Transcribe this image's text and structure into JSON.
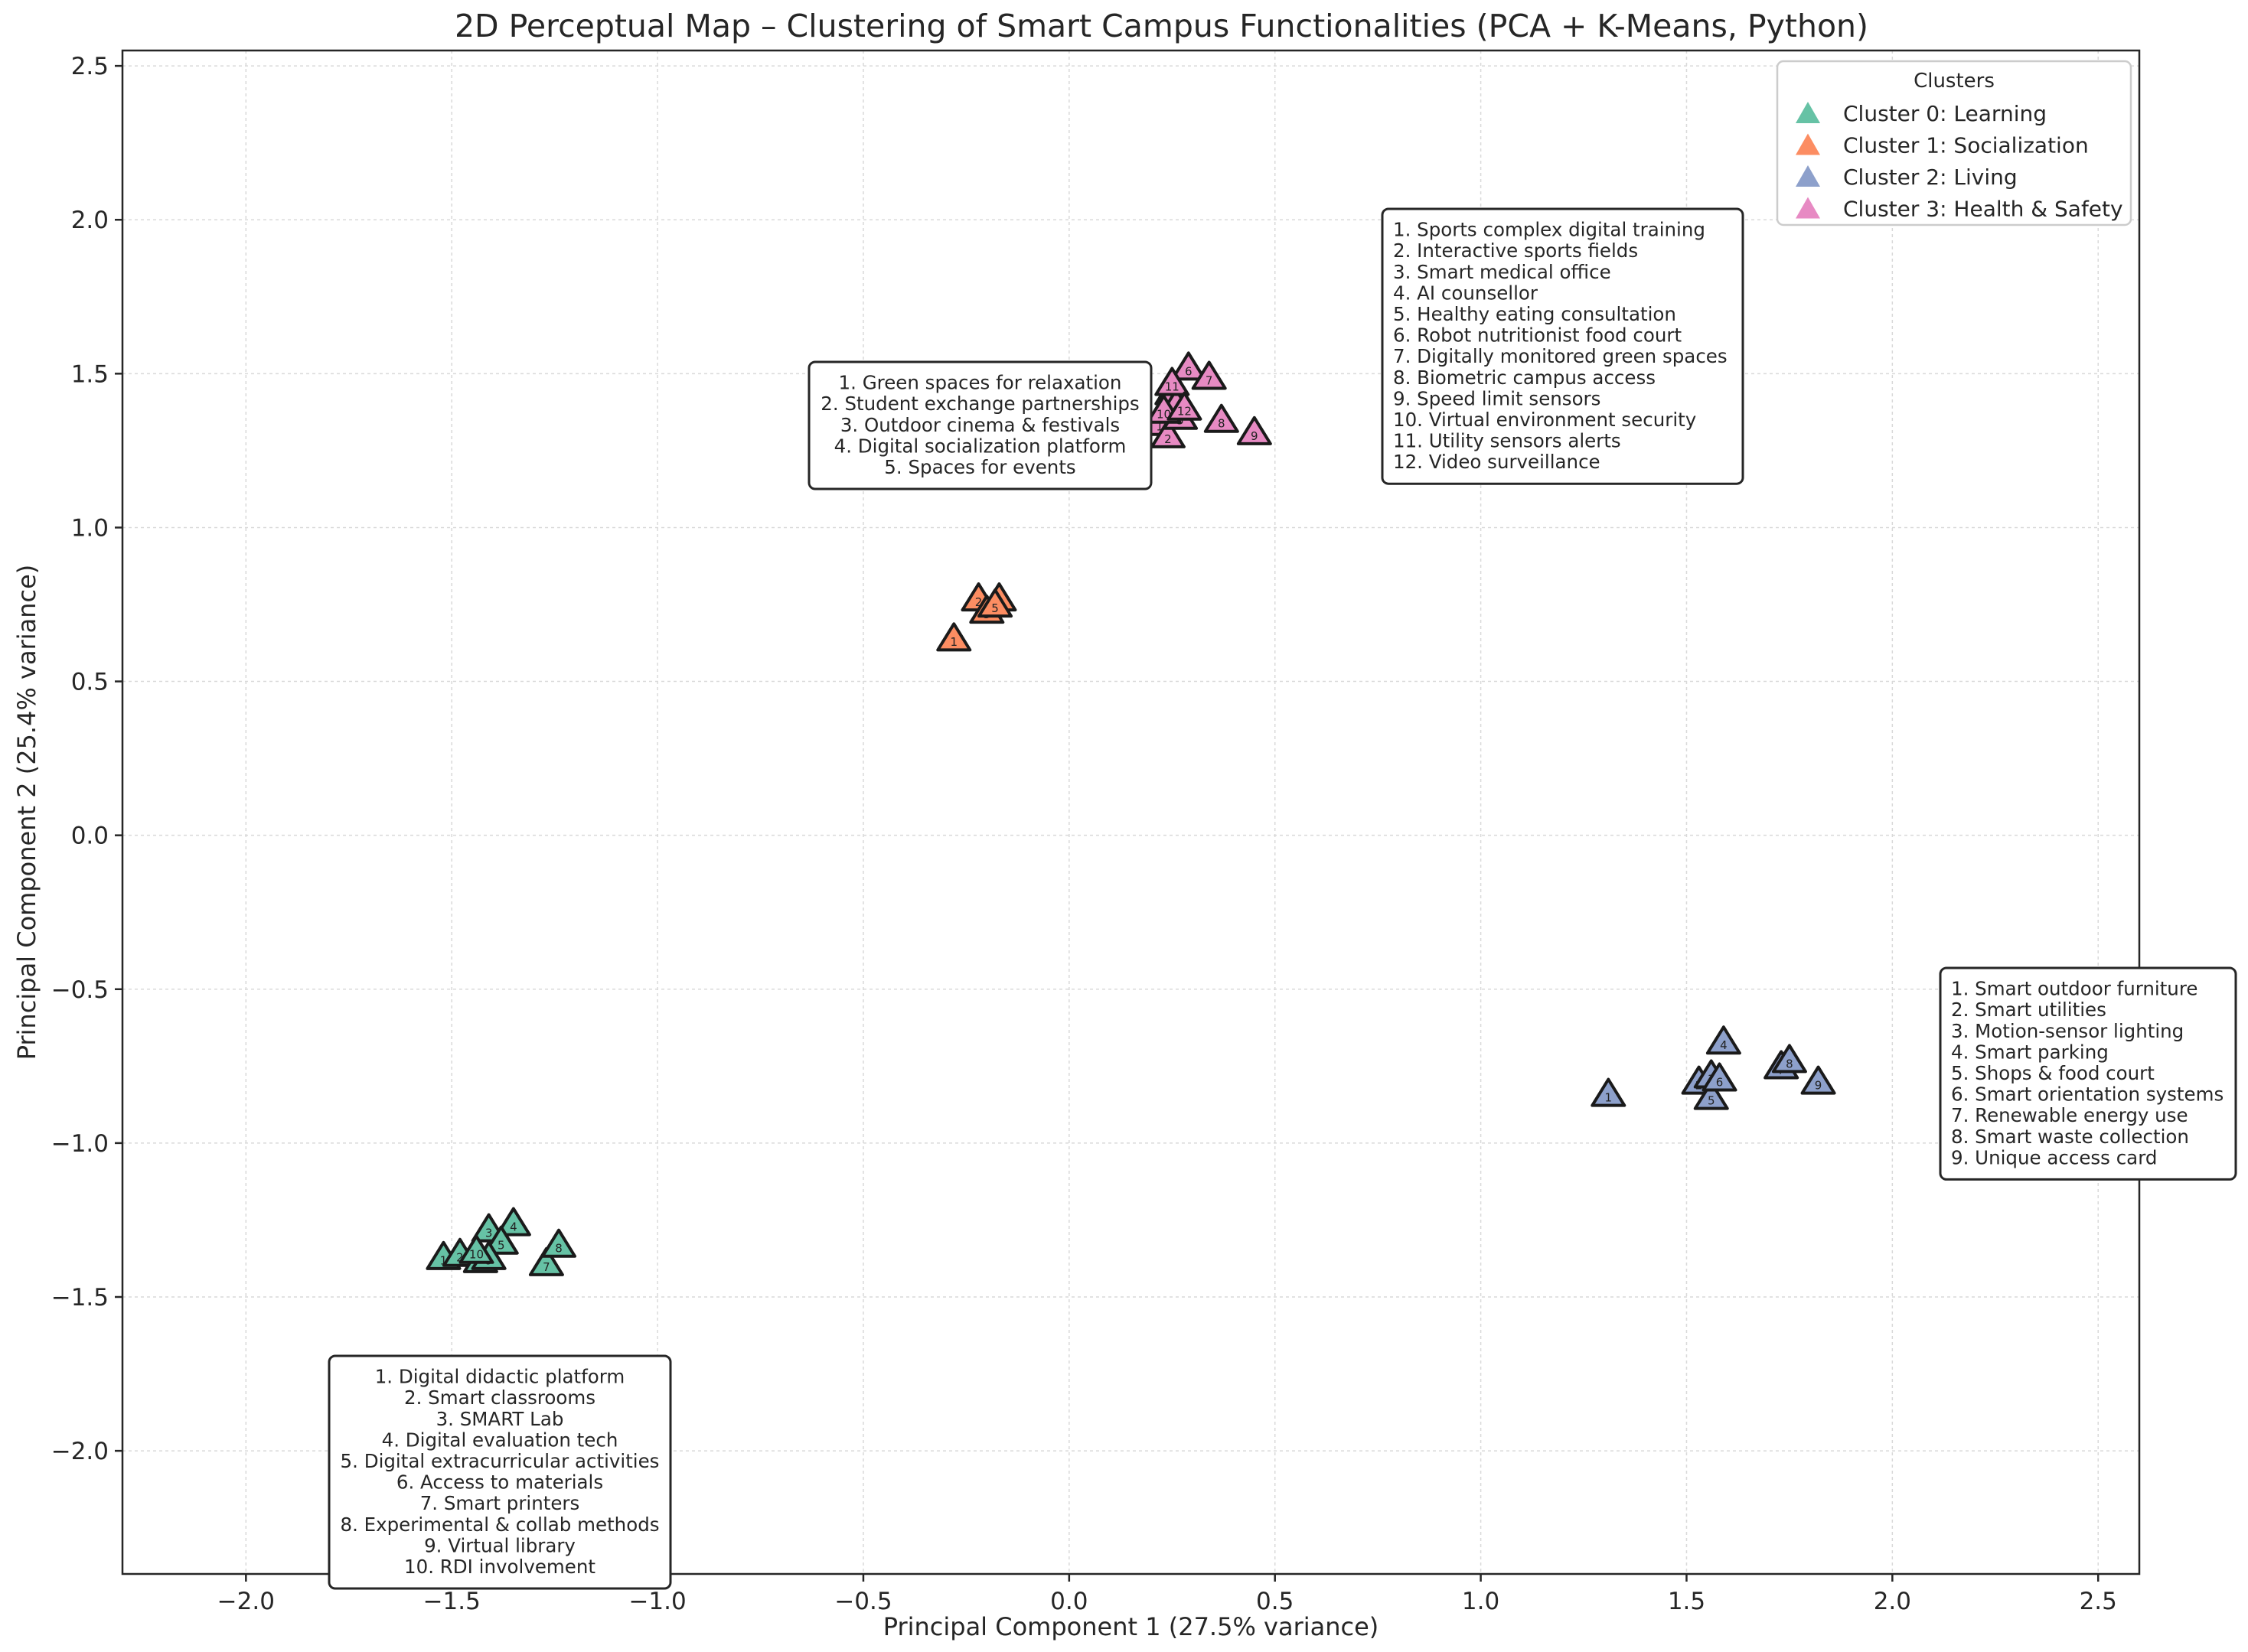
{
  "chart_data": {
    "type": "scatter",
    "title": "2D Perceptual Map – Clustering of Smart Campus Functionalities (PCA + K-Means, Python)",
    "xlabel": "Principal Component 1 (27.5% variance)",
    "ylabel": "Principal Component 2 (25.4% variance)",
    "xlim": [
      -2.3,
      2.6
    ],
    "ylim": [
      -2.4,
      2.55
    ],
    "xticks": [
      -2.0,
      -1.5,
      -1.0,
      -0.5,
      0.0,
      0.5,
      1.0,
      1.5,
      2.0,
      2.5
    ],
    "xtick_labels": [
      "−2.0",
      "−1.5",
      "−1.0",
      "−0.5",
      "0.0",
      "0.5",
      "1.0",
      "1.5",
      "2.0",
      "2.5"
    ],
    "yticks": [
      -2.0,
      -1.5,
      -1.0,
      -0.5,
      0.0,
      0.5,
      1.0,
      1.5,
      2.0,
      2.5
    ],
    "ytick_labels": [
      "−2.0",
      "−1.5",
      "−1.0",
      "−0.5",
      "0.0",
      "0.5",
      "1.0",
      "1.5",
      "2.0",
      "2.5"
    ],
    "grid": true,
    "marker": "triangle",
    "legend": {
      "title": "Clusters",
      "position": "top-right"
    },
    "series": [
      {
        "name": "Cluster 0: Learning",
        "color": "#66c2a5",
        "points": [
          {
            "x": -1.52,
            "y": -1.37,
            "label": "1"
          },
          {
            "x": -1.48,
            "y": -1.36,
            "label": "2"
          },
          {
            "x": -1.41,
            "y": -1.28,
            "label": "3"
          },
          {
            "x": -1.35,
            "y": -1.26,
            "label": "4"
          },
          {
            "x": -1.38,
            "y": -1.32,
            "label": "5"
          },
          {
            "x": -1.43,
            "y": -1.38,
            "label": "6"
          },
          {
            "x": -1.27,
            "y": -1.39,
            "label": "7"
          },
          {
            "x": -1.24,
            "y": -1.33,
            "label": "8"
          },
          {
            "x": -1.41,
            "y": -1.37,
            "label": "9"
          },
          {
            "x": -1.44,
            "y": -1.35,
            "label": "10"
          }
        ],
        "annotation": [
          "1. Digital didactic platform",
          "2. Smart classrooms",
          "3. SMART Lab",
          "4. Digital evaluation tech",
          "5. Digital extracurricular activities",
          "6. Access to materials",
          "7. Smart printers",
          "8. Experimental & collab methods",
          "9. Virtual library",
          "10. RDI involvement"
        ]
      },
      {
        "name": "Cluster 1: Socialization",
        "color": "#fc8d62",
        "points": [
          {
            "x": -0.28,
            "y": 0.64,
            "label": "1"
          },
          {
            "x": -0.22,
            "y": 0.77,
            "label": "2"
          },
          {
            "x": -0.2,
            "y": 0.73,
            "label": "3"
          },
          {
            "x": -0.17,
            "y": 0.77,
            "label": "4"
          },
          {
            "x": -0.18,
            "y": 0.75,
            "label": "5"
          }
        ],
        "annotation": [
          "1. Green spaces for relaxation",
          "2. Student exchange partnerships",
          "3. Outdoor cinema & festivals",
          "4. Digital socialization platform",
          "5. Spaces for events"
        ]
      },
      {
        "name": "Cluster 2: Living",
        "color": "#8da0cb",
        "points": [
          {
            "x": 1.31,
            "y": -0.84,
            "label": "1"
          },
          {
            "x": 1.53,
            "y": -0.8,
            "label": "2"
          },
          {
            "x": 1.56,
            "y": -0.78,
            "label": "3"
          },
          {
            "x": 1.59,
            "y": -0.67,
            "label": "4"
          },
          {
            "x": 1.56,
            "y": -0.85,
            "label": "5"
          },
          {
            "x": 1.58,
            "y": -0.79,
            "label": "6"
          },
          {
            "x": 1.73,
            "y": -0.75,
            "label": "7"
          },
          {
            "x": 1.75,
            "y": -0.73,
            "label": "8"
          },
          {
            "x": 1.82,
            "y": -0.8,
            "label": "9"
          }
        ],
        "annotation": [
          "1. Smart outdoor furniture",
          "2. Smart utilities",
          "3. Motion-sensor lighting",
          "4. Smart parking",
          "5. Shops & food court",
          "6. Smart orientation systems",
          "7. Renewable energy use",
          "8. Smart waste collection",
          "9. Unique access card"
        ]
      },
      {
        "name": "Cluster 3: Health & Safety",
        "color": "#e78ac3",
        "points": [
          {
            "x": 0.22,
            "y": 1.34,
            "label": "1"
          },
          {
            "x": 0.24,
            "y": 1.3,
            "label": "2"
          },
          {
            "x": 0.25,
            "y": 1.44,
            "label": "3"
          },
          {
            "x": 0.26,
            "y": 1.4,
            "label": "4"
          },
          {
            "x": 0.27,
            "y": 1.36,
            "label": "5"
          },
          {
            "x": 0.29,
            "y": 1.52,
            "label": "6"
          },
          {
            "x": 0.34,
            "y": 1.49,
            "label": "7"
          },
          {
            "x": 0.37,
            "y": 1.35,
            "label": "8"
          },
          {
            "x": 0.45,
            "y": 1.31,
            "label": "9"
          },
          {
            "x": 0.23,
            "y": 1.38,
            "label": "10"
          },
          {
            "x": 0.25,
            "y": 1.47,
            "label": "11"
          },
          {
            "x": 0.28,
            "y": 1.39,
            "label": "12"
          }
        ],
        "annotation": [
          "1. Sports complex digital training",
          "2. Interactive sports fields",
          "3. Smart medical office",
          "4. AI counsellor",
          "5. Healthy eating consultation",
          "6. Robot nutritionist food court",
          "7. Digitally monitored green spaces",
          "8. Biometric campus access",
          "9. Speed limit sensors",
          "10. Virtual environment security",
          "11. Utility sensors alerts",
          "12. Video surveillance"
        ]
      }
    ]
  }
}
